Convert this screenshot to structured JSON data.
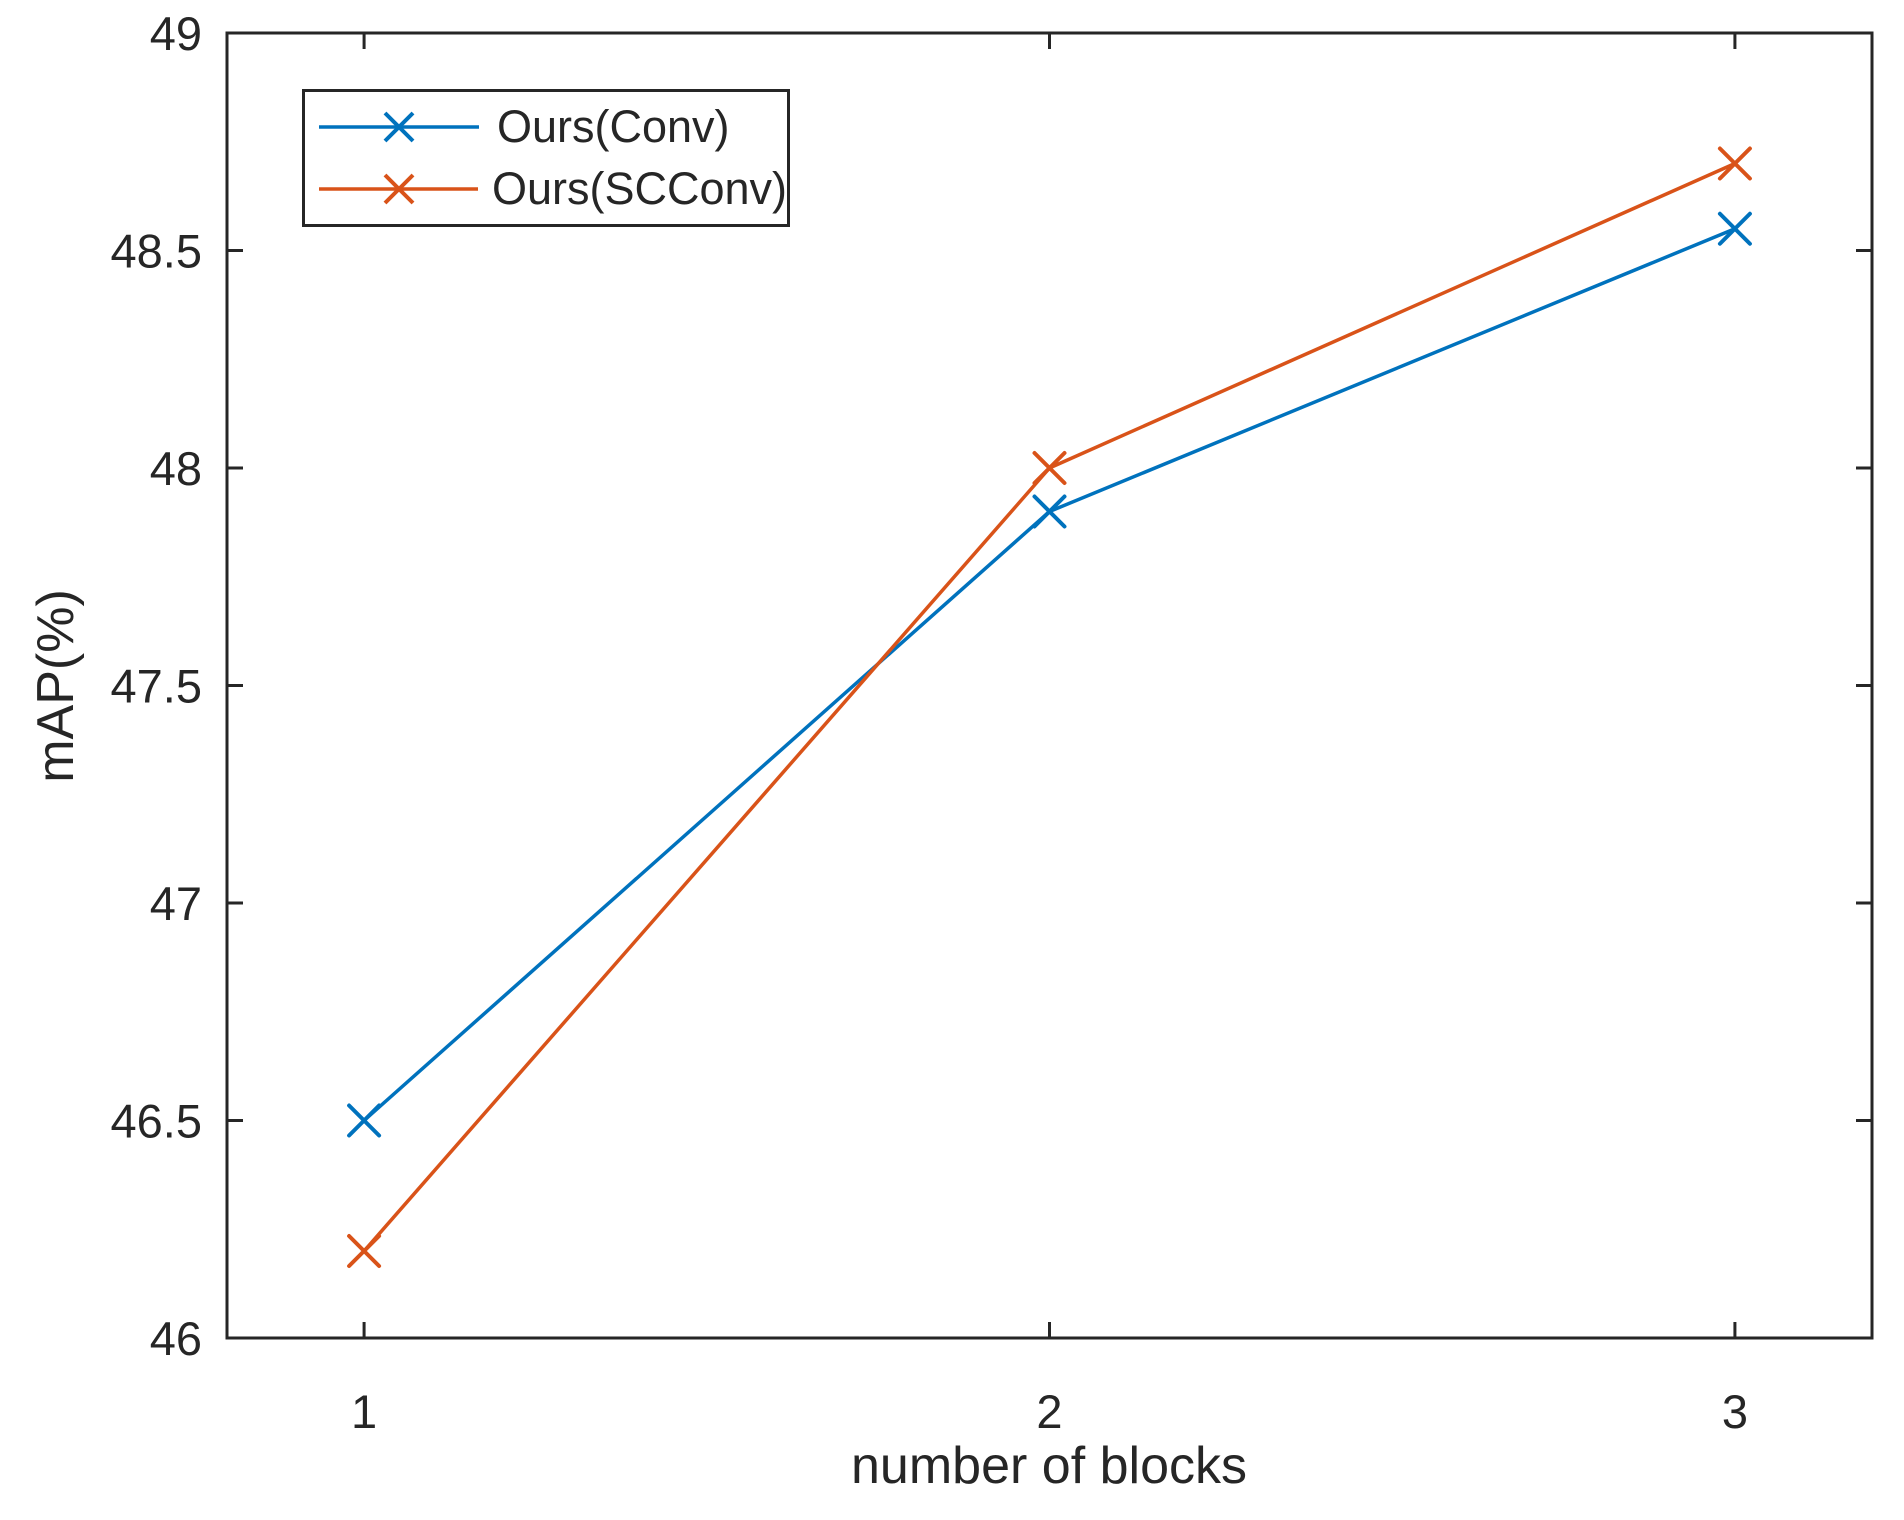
{
  "chart_data": {
    "type": "line",
    "title": "",
    "xlabel": "number of blocks",
    "ylabel": "mAP(%)",
    "x": [
      1,
      2,
      3
    ],
    "xlim": [
      0.8,
      3.2
    ],
    "ylim": [
      46,
      49
    ],
    "xticks": [
      1,
      2,
      3
    ],
    "yticks": [
      46,
      46.5,
      47,
      47.5,
      48,
      48.5,
      49
    ],
    "grid": false,
    "box": true,
    "tick_direction": "in",
    "axis_color": "#262626",
    "background_color": "#ffffff",
    "legend_position": "top-left-inside",
    "marker": "x",
    "series": [
      {
        "name": "Ours(Conv)",
        "color": "#0072BD",
        "marker": "x",
        "values": [
          46.5,
          47.9,
          48.55
        ]
      },
      {
        "name": "Ours(SCConv)",
        "color": "#D95319",
        "marker": "x",
        "values": [
          46.2,
          48.0,
          48.7
        ]
      }
    ]
  }
}
